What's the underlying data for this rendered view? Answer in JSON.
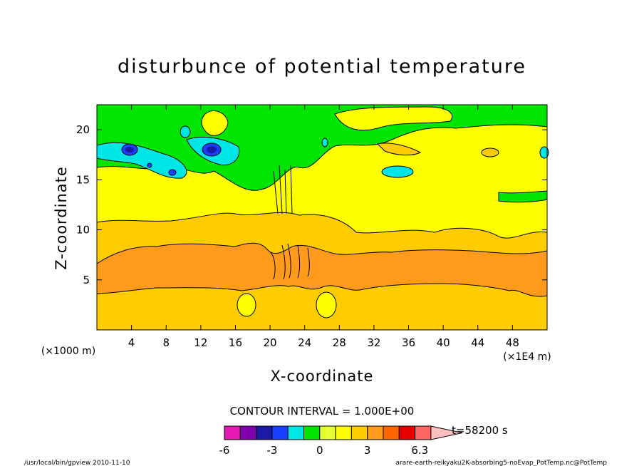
{
  "chart_data": {
    "type": "heatmap",
    "title": "disturbunce of potential temperature",
    "xlabel": "X-coordinate",
    "ylabel": "Z-coordinate",
    "x_unit_left": "(×1000 m)",
    "x_unit_right": "(×1E4 m)",
    "xlim": [
      0,
      52
    ],
    "ylim": [
      0,
      22.5
    ],
    "xticks": [
      4,
      8,
      12,
      16,
      20,
      24,
      28,
      32,
      36,
      40,
      44,
      48
    ],
    "yticks": [
      5,
      10,
      15,
      20
    ],
    "contour_interval": "CONTOUR INTERVAL = 1.000E+00",
    "time_label": "t=58200 s",
    "colorbar": {
      "labels": [
        "-6",
        "-3",
        "0",
        "3",
        "6.3"
      ],
      "colors": [
        "#e61ab3",
        "#8000b0",
        "#1a1aa6",
        "#1a40ff",
        "#00e6e6",
        "#00e600",
        "#e6ff33",
        "#ffff00",
        "#ffcc00",
        "#ff9a1a",
        "#ff6600",
        "#e60000",
        "#ff6666",
        "#ffbfbf"
      ]
    },
    "layers": [
      {
        "range": "≈ +2 to +3",
        "z": [
          0,
          3.5
        ],
        "color": "#ffcc00"
      },
      {
        "range": "≈ +3 to +4",
        "z": [
          3.5,
          9
        ],
        "color": "#ff9a1a"
      },
      {
        "range": "≈ +2 to +3",
        "z": [
          9,
          11
        ],
        "color": "#ffcc00"
      },
      {
        "range": "≈ +1 to +2",
        "z": [
          11,
          15
        ],
        "color": "#ffff00"
      },
      {
        "range": "≈ 0 to +1",
        "z": [
          15,
          22.5
        ],
        "color": "#00e600"
      }
    ]
  },
  "footer": {
    "left": "/usr/local/bin/gpview  2010-11-10",
    "right": "arare-earth-reikyaku2K-absorbing5-noEvap_PotTemp.nc@PotTemp"
  }
}
